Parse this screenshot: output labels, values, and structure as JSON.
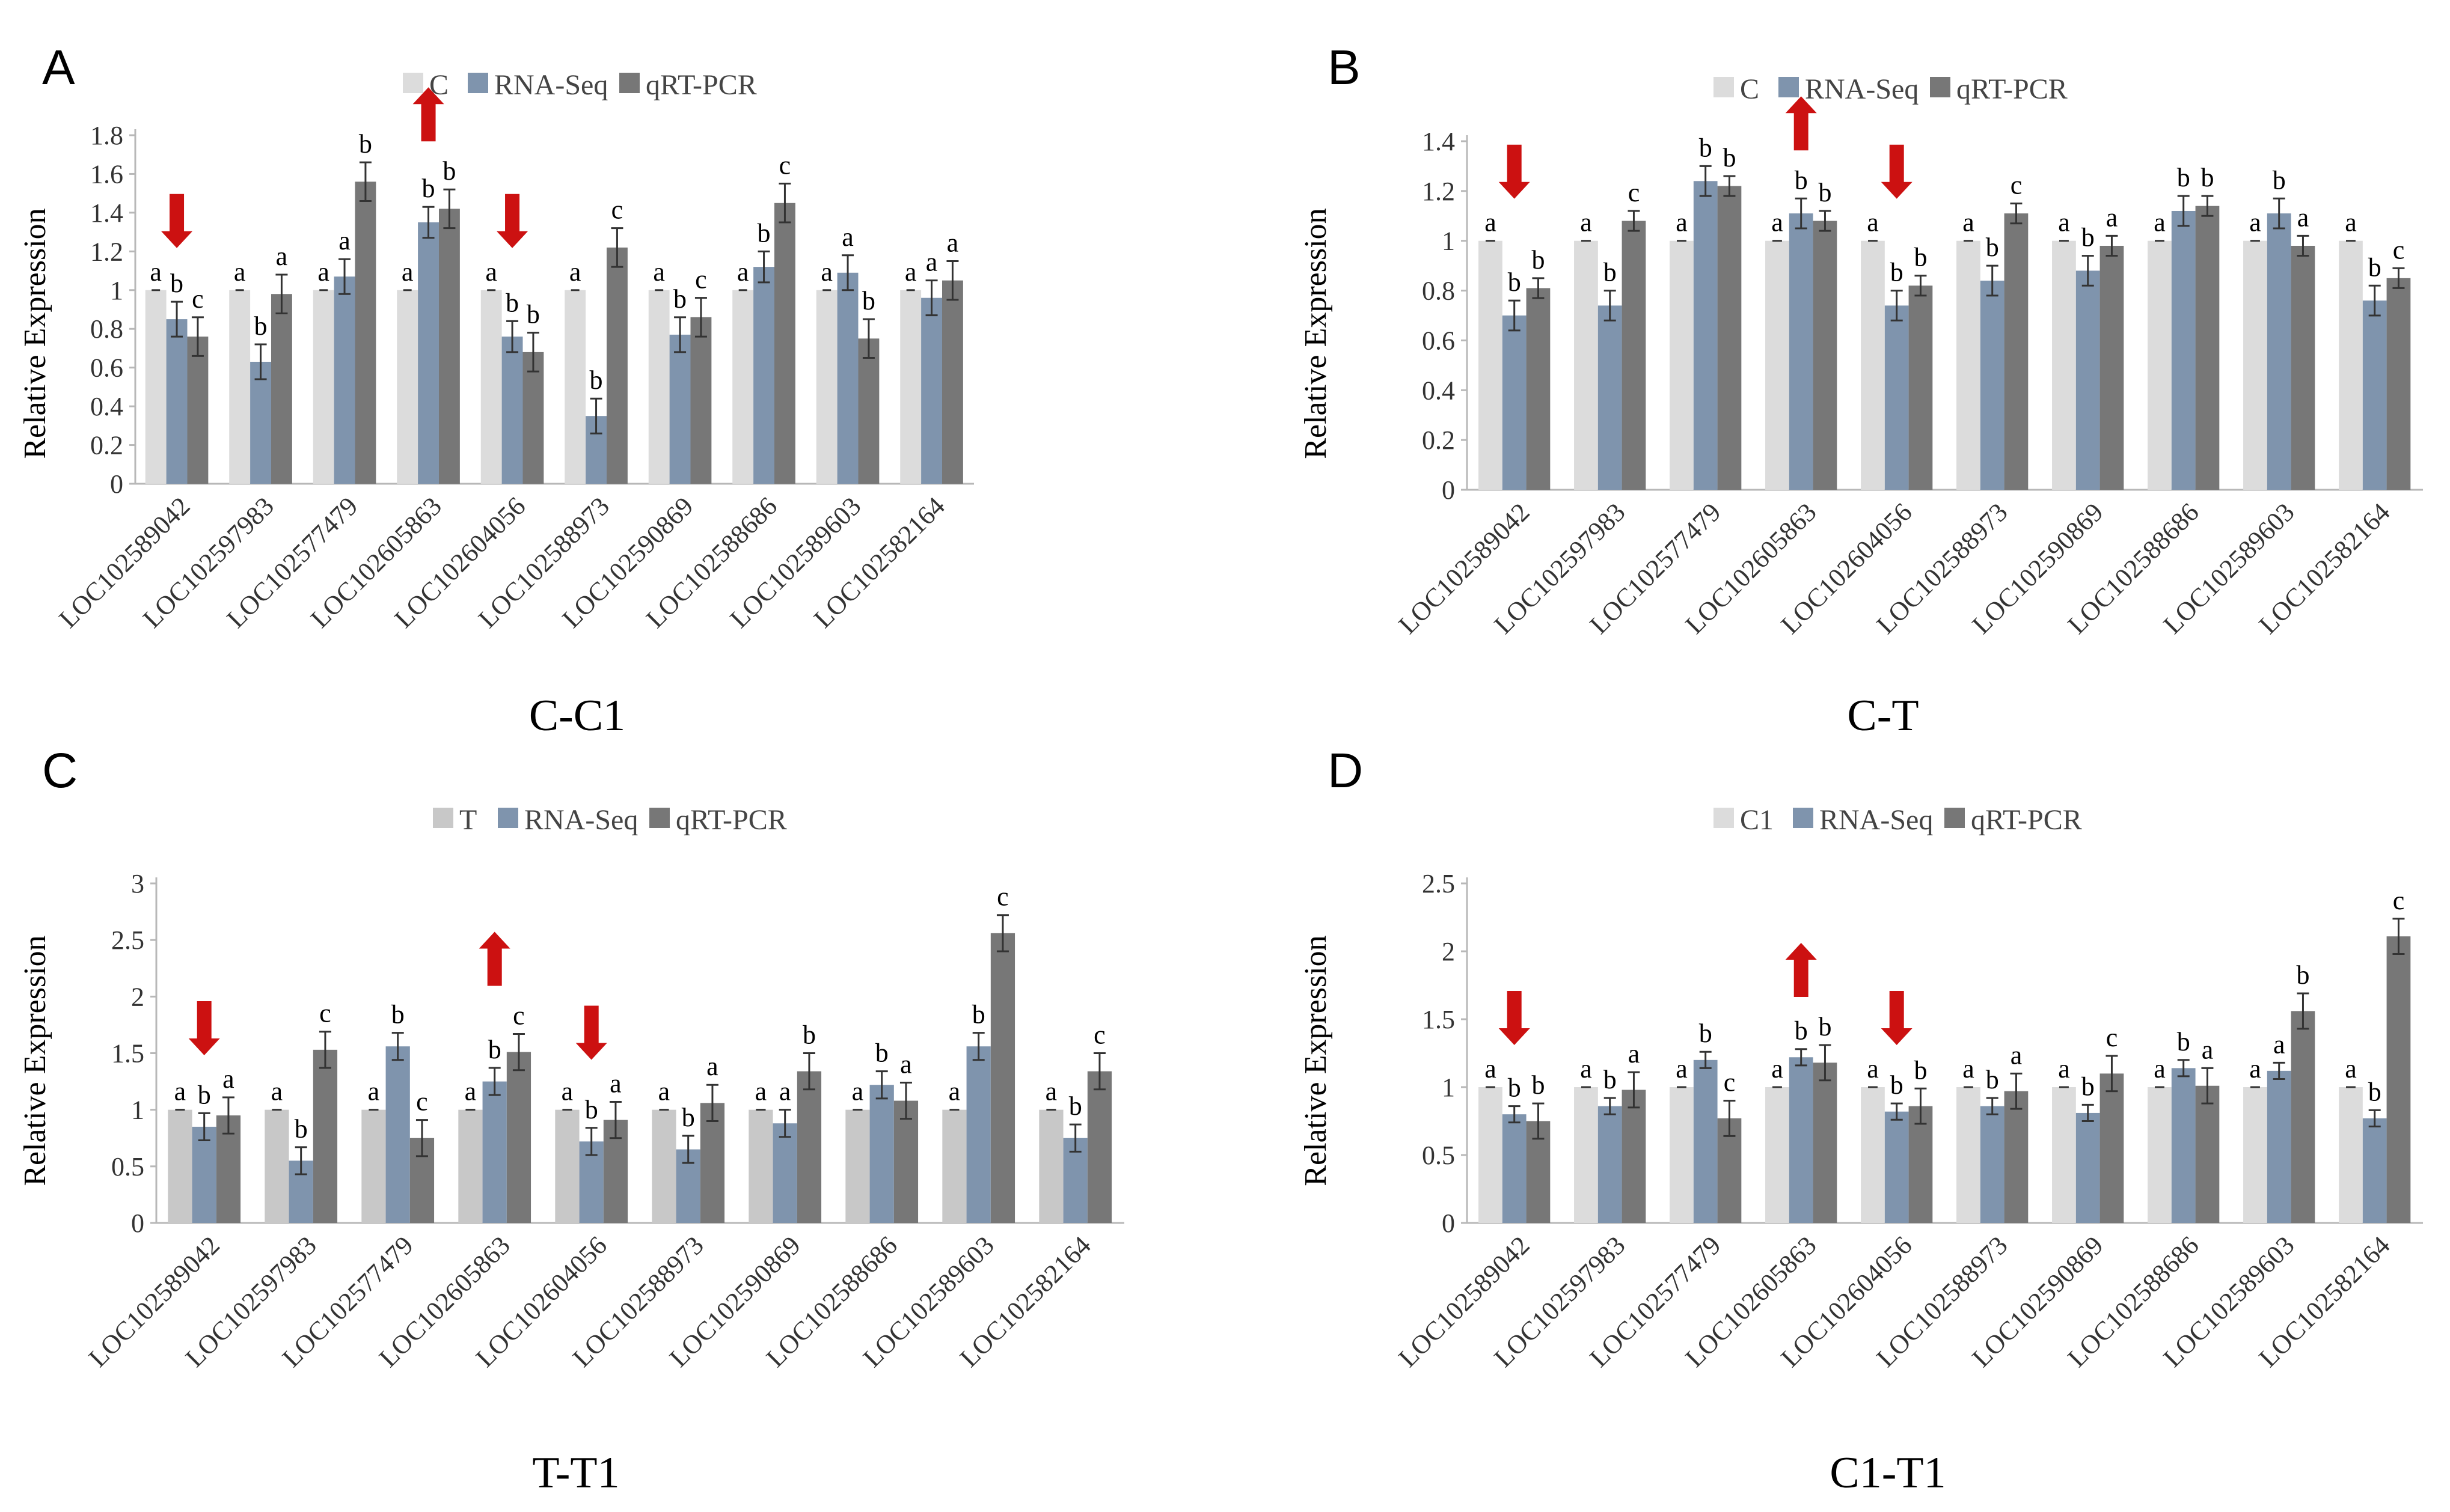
{
  "colors": {
    "control": "#c8c8c8",
    "control_light": "#dcdcdc",
    "rna_seq": "#7f94ad",
    "qrt_pcr": "#777777",
    "arrow": "#cc1111",
    "axis": "#b8b8b8"
  },
  "chart_data": [
    {
      "panel": "A",
      "type": "bar",
      "title": "C-C1",
      "ylabel": "Relative Expression",
      "ylim": [
        0,
        1.8
      ],
      "yticks": [
        "0",
        "0.2",
        "0.4",
        "0.6",
        "0.8",
        "1",
        "1.2",
        "1.4",
        "1.6",
        "1.8"
      ],
      "categories": [
        "LOC102589042",
        "LOC102597983",
        "LOC102577479",
        "LOC102605863",
        "LOC102604056",
        "LOC102588973",
        "LOC102590869",
        "LOC102588686",
        "LOC102589603",
        "LOC102582164"
      ],
      "legend": [
        "C",
        "RNA-Seq",
        "qRT-PCR"
      ],
      "series": [
        {
          "name": "C",
          "values": [
            1,
            1,
            1,
            1,
            1,
            1,
            1,
            1,
            1,
            1
          ],
          "errors": [
            0,
            0,
            0,
            0,
            0,
            0,
            0,
            0,
            0,
            0
          ],
          "letters": [
            "a",
            "a",
            "a",
            "a",
            "a",
            "a",
            "a",
            "a",
            "a",
            "a"
          ]
        },
        {
          "name": "RNA-Seq",
          "values": [
            0.85,
            0.63,
            1.07,
            1.35,
            0.76,
            0.35,
            0.77,
            1.12,
            1.09,
            0.96
          ],
          "errors": [
            0.09,
            0.09,
            0.09,
            0.08,
            0.08,
            0.09,
            0.09,
            0.08,
            0.09,
            0.09
          ],
          "letters": [
            "b",
            "b",
            "a",
            "b",
            "b",
            "b",
            "b",
            "b",
            "a",
            "a"
          ]
        },
        {
          "name": "qRT-PCR",
          "values": [
            0.76,
            0.98,
            1.56,
            1.42,
            0.68,
            1.22,
            0.86,
            1.45,
            0.75,
            1.05
          ],
          "errors": [
            0.1,
            0.1,
            0.1,
            0.1,
            0.1,
            0.1,
            0.1,
            0.1,
            0.1,
            0.1
          ],
          "letters": [
            "c",
            "a",
            "b",
            "b",
            "b",
            "c",
            "c",
            "c",
            "b",
            "a"
          ]
        }
      ],
      "arrows": [
        {
          "category": "LOC102589042",
          "direction": "down"
        },
        {
          "category": "LOC102605863",
          "direction": "up"
        },
        {
          "category": "LOC102604056",
          "direction": "down"
        }
      ]
    },
    {
      "panel": "B",
      "type": "bar",
      "title": "C-T",
      "ylabel": "Relative Expression",
      "ylim": [
        0,
        1.4
      ],
      "yticks": [
        "0",
        "0.2",
        "0.4",
        "0.6",
        "0.8",
        "1",
        "1.2",
        "1.4"
      ],
      "categories": [
        "LOC102589042",
        "LOC102597983",
        "LOC102577479",
        "LOC102605863",
        "LOC102604056",
        "LOC102588973",
        "LOC102590869",
        "LOC102588686",
        "LOC102589603",
        "LOC102582164"
      ],
      "legend": [
        "C",
        "RNA-Seq",
        "qRT-PCR"
      ],
      "series": [
        {
          "name": "C",
          "values": [
            1,
            1,
            1,
            1,
            1,
            1,
            1,
            1,
            1,
            1
          ],
          "errors": [
            0,
            0,
            0,
            0,
            0,
            0,
            0,
            0,
            0,
            0
          ],
          "letters": [
            "a",
            "a",
            "a",
            "a",
            "a",
            "a",
            "a",
            "a",
            "a",
            "a"
          ]
        },
        {
          "name": "RNA-Seq",
          "values": [
            0.7,
            0.74,
            1.24,
            1.11,
            0.74,
            0.84,
            0.88,
            1.12,
            1.11,
            0.76
          ],
          "errors": [
            0.06,
            0.06,
            0.06,
            0.06,
            0.06,
            0.06,
            0.06,
            0.06,
            0.06,
            0.06
          ],
          "letters": [
            "b",
            "b",
            "b",
            "b",
            "b",
            "b",
            "b",
            "b",
            "b",
            "b"
          ]
        },
        {
          "name": "qRT-PCR",
          "values": [
            0.81,
            1.08,
            1.22,
            1.08,
            0.82,
            1.11,
            0.98,
            1.14,
            0.98,
            0.85
          ],
          "errors": [
            0.04,
            0.04,
            0.04,
            0.04,
            0.04,
            0.04,
            0.04,
            0.04,
            0.04,
            0.04
          ],
          "letters": [
            "b",
            "c",
            "b",
            "b",
            "b",
            "c",
            "a",
            "b",
            "a",
            "c"
          ]
        }
      ],
      "arrows": [
        {
          "category": "LOC102589042",
          "direction": "down"
        },
        {
          "category": "LOC102605863",
          "direction": "up"
        },
        {
          "category": "LOC102604056",
          "direction": "down"
        }
      ]
    },
    {
      "panel": "C",
      "type": "bar",
      "title": "T-T1",
      "ylabel": "Relative Expression",
      "ylim": [
        0,
        3
      ],
      "yticks": [
        "0",
        "0.5",
        "1",
        "1.5",
        "2",
        "2.5",
        "3"
      ],
      "categories": [
        "LOC102589042",
        "LOC102597983",
        "LOC102577479",
        "LOC102605863",
        "LOC102604056",
        "LOC102588973",
        "LOC102590869",
        "LOC102588686",
        "LOC102589603",
        "LOC102582164"
      ],
      "legend": [
        "T",
        "RNA-Seq",
        "qRT-PCR"
      ],
      "series": [
        {
          "name": "T",
          "values": [
            1,
            1,
            1,
            1,
            1,
            1,
            1,
            1,
            1,
            1
          ],
          "errors": [
            0,
            0,
            0,
            0,
            0,
            0,
            0,
            0,
            0,
            0
          ],
          "letters": [
            "a",
            "a",
            "a",
            "a",
            "a",
            "a",
            "a",
            "a",
            "a",
            "a"
          ]
        },
        {
          "name": "RNA-Seq",
          "values": [
            0.85,
            0.55,
            1.56,
            1.25,
            0.72,
            0.65,
            0.88,
            1.22,
            1.56,
            0.75
          ],
          "errors": [
            0.12,
            0.12,
            0.12,
            0.12,
            0.12,
            0.12,
            0.12,
            0.12,
            0.12,
            0.12
          ],
          "letters": [
            "b",
            "b",
            "b",
            "b",
            "b",
            "b",
            "a",
            "b",
            "b",
            "b"
          ]
        },
        {
          "name": "qRT-PCR",
          "values": [
            0.95,
            1.53,
            0.75,
            1.51,
            0.91,
            1.06,
            1.34,
            1.08,
            2.56,
            1.34
          ],
          "errors": [
            0.16,
            0.16,
            0.16,
            0.16,
            0.16,
            0.16,
            0.16,
            0.16,
            0.16,
            0.16
          ],
          "letters": [
            "a",
            "c",
            "c",
            "c",
            "a",
            "a",
            "b",
            "a",
            "c",
            "c"
          ]
        }
      ],
      "arrows": [
        {
          "category": "LOC102589042",
          "direction": "down"
        },
        {
          "category": "LOC102605863",
          "direction": "up"
        },
        {
          "category": "LOC102604056",
          "direction": "down"
        }
      ]
    },
    {
      "panel": "D",
      "type": "bar",
      "title": "C1-T1",
      "ylabel": "Relative Expression",
      "ylim": [
        0,
        2.5
      ],
      "yticks": [
        "0",
        "0.5",
        "1",
        "1.5",
        "2",
        "2.5"
      ],
      "categories": [
        "LOC102589042",
        "LOC102597983",
        "LOC102577479",
        "LOC102605863",
        "LOC102604056",
        "LOC102588973",
        "LOC102590869",
        "LOC102588686",
        "LOC102589603",
        "LOC102582164"
      ],
      "legend": [
        "C1",
        "RNA-Seq",
        "qRT-PCR"
      ],
      "series": [
        {
          "name": "C1",
          "values": [
            1,
            1,
            1,
            1,
            1,
            1,
            1,
            1,
            1,
            1
          ],
          "errors": [
            0,
            0,
            0,
            0,
            0,
            0,
            0,
            0,
            0,
            0
          ],
          "letters": [
            "a",
            "a",
            "a",
            "a",
            "a",
            "a",
            "a",
            "a",
            "a",
            "a"
          ]
        },
        {
          "name": "RNA-Seq",
          "values": [
            0.8,
            0.86,
            1.2,
            1.22,
            0.82,
            0.86,
            0.81,
            1.14,
            1.12,
            0.77
          ],
          "errors": [
            0.06,
            0.06,
            0.06,
            0.06,
            0.06,
            0.06,
            0.06,
            0.06,
            0.06,
            0.06
          ],
          "letters": [
            "b",
            "b",
            "b",
            "b",
            "b",
            "b",
            "b",
            "b",
            "a",
            "b"
          ]
        },
        {
          "name": "qRT-PCR",
          "values": [
            0.75,
            0.98,
            0.77,
            1.18,
            0.86,
            0.97,
            1.1,
            1.01,
            1.56,
            2.11
          ],
          "errors": [
            0.13,
            0.13,
            0.13,
            0.13,
            0.13,
            0.13,
            0.13,
            0.13,
            0.13,
            0.13
          ],
          "letters": [
            "b",
            "a",
            "c",
            "b",
            "b",
            "a",
            "c",
            "a",
            "b",
            "c"
          ]
        }
      ],
      "arrows": [
        {
          "category": "LOC102589042",
          "direction": "down"
        },
        {
          "category": "LOC102605863",
          "direction": "up"
        },
        {
          "category": "LOC102604056",
          "direction": "down"
        }
      ]
    }
  ]
}
